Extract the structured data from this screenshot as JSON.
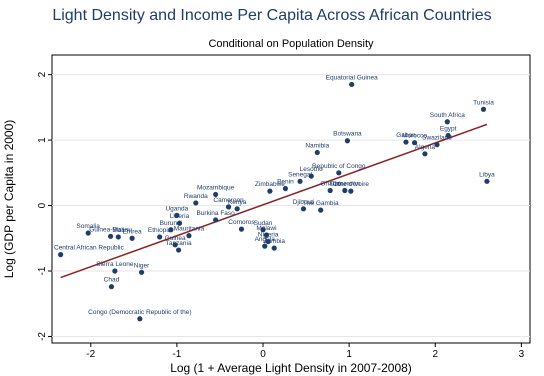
{
  "chart_data": {
    "type": "scatter",
    "title": "Light Density and Income Per Capita Across African Countries",
    "subtitle": "Conditional on Population Density",
    "xlabel": "Log (1 + Average Light Density in 2007-2008)",
    "ylabel": "Log (GDP per Capita in 2000)",
    "xlim": [
      -2.45,
      3.1
    ],
    "ylim": [
      -2.1,
      2.3
    ],
    "xticks": [
      "-2",
      "-1",
      "0",
      "1",
      "2",
      "3"
    ],
    "yticks": [
      "-2",
      "-1",
      "0",
      "1",
      "2"
    ],
    "fit_line": {
      "x": [
        -2.35,
        2.6
      ],
      "y": [
        -1.1,
        1.24
      ]
    },
    "points": [
      {
        "label": "Equatorial Guinea",
        "x": 1.03,
        "y": 1.85
      },
      {
        "label": "Tunisia",
        "x": 2.56,
        "y": 1.47
      },
      {
        "label": "South Africa",
        "x": 2.14,
        "y": 1.28
      },
      {
        "label": "Egypt",
        "x": 2.15,
        "y": 1.07
      },
      {
        "label": "Botswana",
        "x": 0.98,
        "y": 0.99
      },
      {
        "label": "Gabon",
        "x": 1.66,
        "y": 0.97
      },
      {
        "label": "Morocco",
        "x": 1.76,
        "y": 0.96
      },
      {
        "label": "Swaziland",
        "x": 2.02,
        "y": 0.93
      },
      {
        "label": "Algeria",
        "x": 1.88,
        "y": 0.79
      },
      {
        "label": "Namibia",
        "x": 0.63,
        "y": 0.81
      },
      {
        "label": "Libya",
        "x": 2.6,
        "y": 0.37
      },
      {
        "label": "Republic of Congo",
        "x": 0.88,
        "y": 0.5
      },
      {
        "label": "Lesotho",
        "x": 0.56,
        "y": 0.45
      },
      {
        "label": "Senegal",
        "x": 0.43,
        "y": 0.37
      },
      {
        "label": "Ghana",
        "x": 0.78,
        "y": 0.23
      },
      {
        "label": "Côte d'Ivoire",
        "x": 1.02,
        "y": 0.22
      },
      {
        "label": "Cameroon",
        "x": 0.95,
        "y": 0.23
      },
      {
        "label": "Benin",
        "x": 0.26,
        "y": 0.26
      },
      {
        "label": "Zimbabwe",
        "x": 0.08,
        "y": 0.22
      },
      {
        "label": "Djibouti",
        "x": 0.47,
        "y": -0.05
      },
      {
        "label": "The Gambia",
        "x": 0.67,
        "y": -0.07
      },
      {
        "label": "Mozambique",
        "x": -0.55,
        "y": 0.17
      },
      {
        "label": "Rwanda",
        "x": -0.78,
        "y": 0.04
      },
      {
        "label": "Cameroon",
        "x": -0.4,
        "y": -0.02
      },
      {
        "label": "Kenya",
        "x": -0.3,
        "y": -0.05
      },
      {
        "label": "Uganda",
        "x": -1.0,
        "y": -0.15
      },
      {
        "label": "Burkina Faso",
        "x": -0.55,
        "y": -0.22
      },
      {
        "label": "Liberia",
        "x": -0.97,
        "y": -0.27
      },
      {
        "label": "Comoros",
        "x": -0.25,
        "y": -0.36
      },
      {
        "label": "Sudan",
        "x": 0.0,
        "y": -0.37
      },
      {
        "label": "Malawi",
        "x": 0.04,
        "y": -0.45
      },
      {
        "label": "Angola",
        "x": 0.02,
        "y": -0.62
      },
      {
        "label": "Zambia",
        "x": 0.13,
        "y": -0.65
      },
      {
        "label": "Nigeria",
        "x": 0.06,
        "y": -0.55
      },
      {
        "label": "Burundi",
        "x": -1.07,
        "y": -0.37
      },
      {
        "label": "Ethiopia",
        "x": -1.2,
        "y": -0.48
      },
      {
        "label": "Mauritania",
        "x": -0.86,
        "y": -0.46
      },
      {
        "label": "Guinea",
        "x": -1.02,
        "y": -0.6
      },
      {
        "label": "Tanzania",
        "x": -0.98,
        "y": -0.68
      },
      {
        "label": "Somalia",
        "x": -2.03,
        "y": -0.42
      },
      {
        "label": "Guinea-Bissau",
        "x": -1.77,
        "y": -0.47
      },
      {
        "label": "Mali",
        "x": -1.68,
        "y": -0.48
      },
      {
        "label": "Eritrea",
        "x": -1.52,
        "y": -0.5
      },
      {
        "label": "Central African Republic",
        "x": -2.35,
        "y": -0.75
      },
      {
        "label": "Sierra Leone",
        "x": -1.72,
        "y": -1.0
      },
      {
        "label": "Niger",
        "x": -1.41,
        "y": -1.02
      },
      {
        "label": "Chad",
        "x": -1.76,
        "y": -1.24
      },
      {
        "label": "Congo (Democratic Republic of the)",
        "x": -1.43,
        "y": -1.73
      }
    ]
  }
}
